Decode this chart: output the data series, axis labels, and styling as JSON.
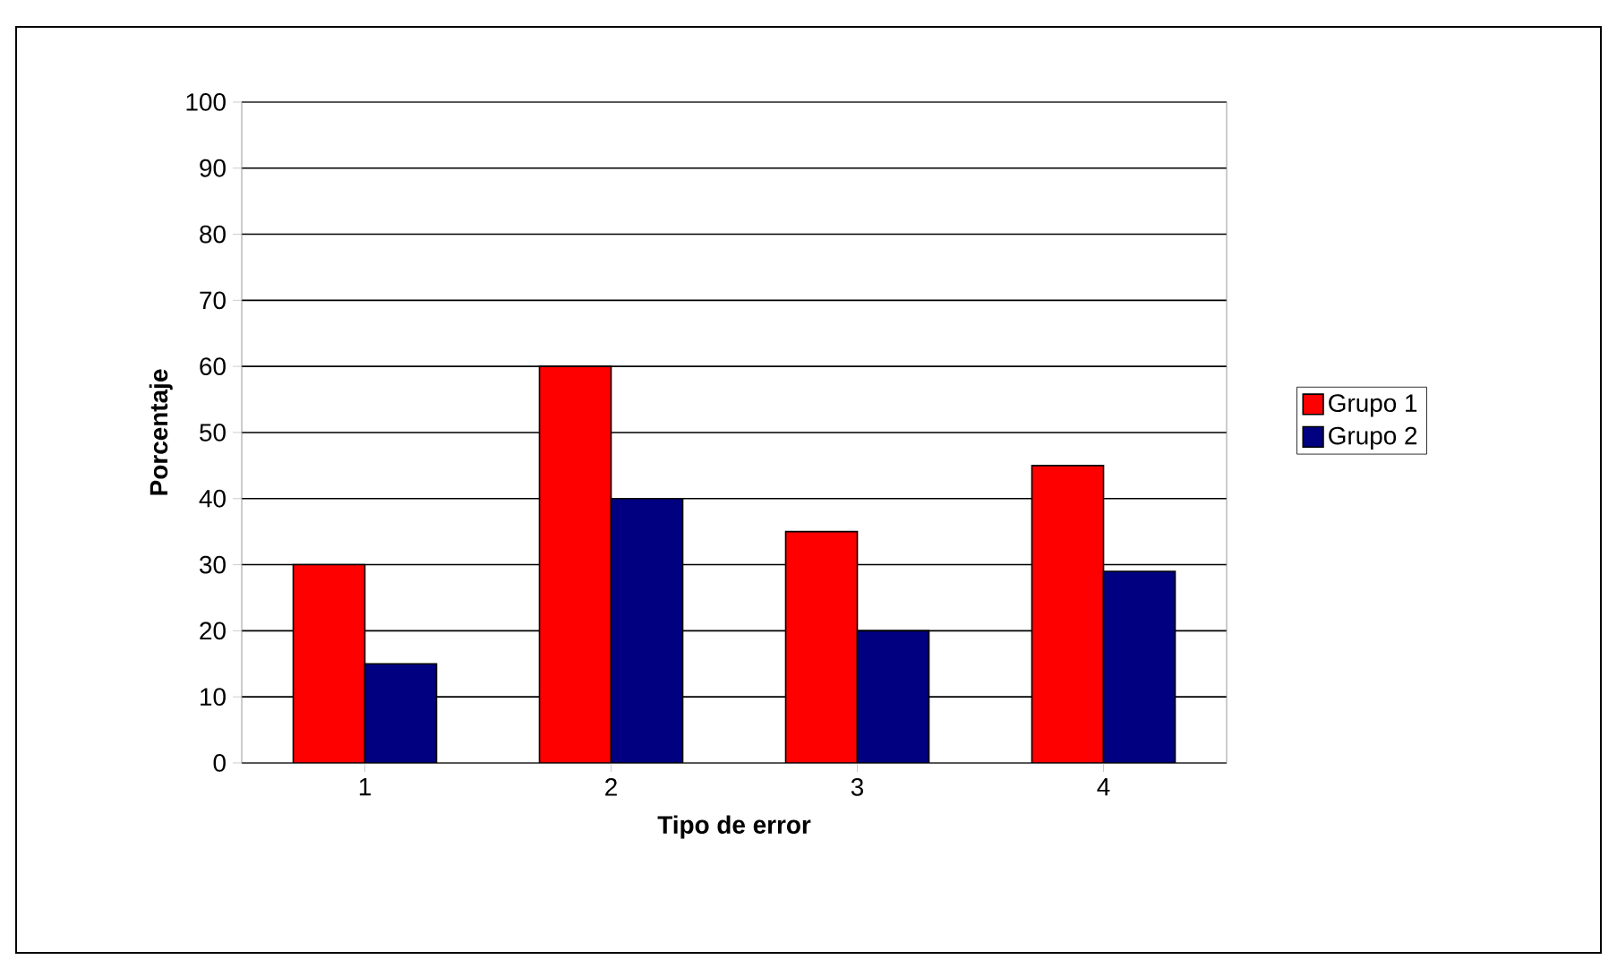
{
  "chart_data": {
    "type": "bar",
    "xlabel": "Tipo de error",
    "ylabel": "Porcentaje",
    "categories": [
      "1",
      "2",
      "3",
      "4"
    ],
    "series": [
      {
        "name": "Grupo 1",
        "color": "#ff0000",
        "values": [
          30,
          60,
          35,
          45
        ]
      },
      {
        "name": "Grupo 2",
        "color": "#000080",
        "values": [
          15,
          40,
          20,
          29
        ]
      }
    ],
    "ylim": [
      0,
      100
    ],
    "yticks": [
      0,
      10,
      20,
      30,
      40,
      50,
      60,
      70,
      80,
      90,
      100
    ],
    "grid": "y",
    "legend": "right"
  }
}
